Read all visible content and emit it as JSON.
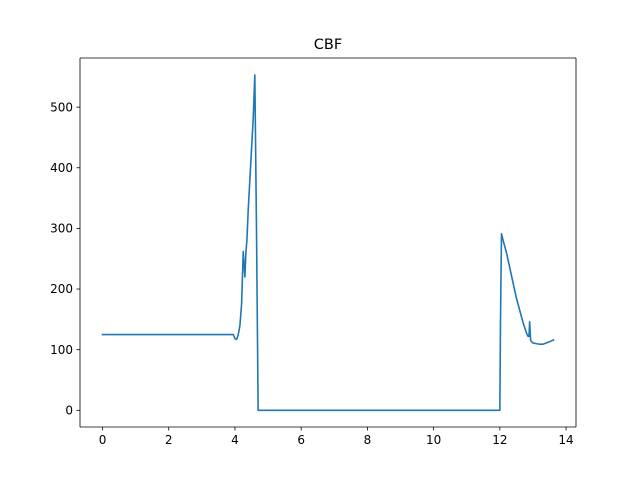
{
  "chart_data": {
    "type": "line",
    "title": "CBF",
    "xlabel": "",
    "ylabel": "",
    "xlim": [
      -0.68,
      14.3
    ],
    "ylim": [
      -27.5,
      581
    ],
    "xticks": [
      0,
      2,
      4,
      6,
      8,
      10,
      12,
      14
    ],
    "yticks": [
      0,
      100,
      200,
      300,
      400,
      500
    ],
    "grid": false,
    "colors": {
      "line": "#1f77b4",
      "axis": "#000000",
      "background": "#ffffff"
    },
    "series": [
      {
        "x": [
          0,
          0.5,
          1,
          1.5,
          2,
          2.5,
          3,
          3.5,
          3.95,
          4.0,
          4.05,
          4.1,
          4.15,
          4.2,
          4.25,
          4.3,
          4.33,
          4.36,
          4.4,
          4.45,
          4.5,
          4.55,
          4.6,
          4.65,
          4.7,
          4.75,
          5.0,
          6.0,
          7.0,
          8.0,
          9.0,
          10.0,
          11.0,
          12.0,
          12.02,
          12.05,
          12.1,
          12.2,
          12.3,
          12.4,
          12.5,
          12.6,
          12.7,
          12.8,
          12.85,
          12.88,
          12.9,
          12.93,
          13.0,
          13.1,
          13.2,
          13.3,
          13.4,
          13.5,
          13.62
        ],
        "values": [
          125,
          125,
          125,
          125,
          125,
          125,
          125,
          125,
          125,
          118,
          117,
          125,
          140,
          175,
          262,
          220,
          260,
          280,
          330,
          380,
          430,
          480,
          553,
          300,
          0,
          0,
          0,
          0,
          0,
          0,
          0,
          0,
          0,
          0,
          150,
          291,
          280,
          260,
          235,
          210,
          185,
          165,
          145,
          128,
          122,
          122,
          146,
          115,
          111,
          110,
          109,
          109,
          111,
          113,
          116
        ]
      }
    ]
  }
}
